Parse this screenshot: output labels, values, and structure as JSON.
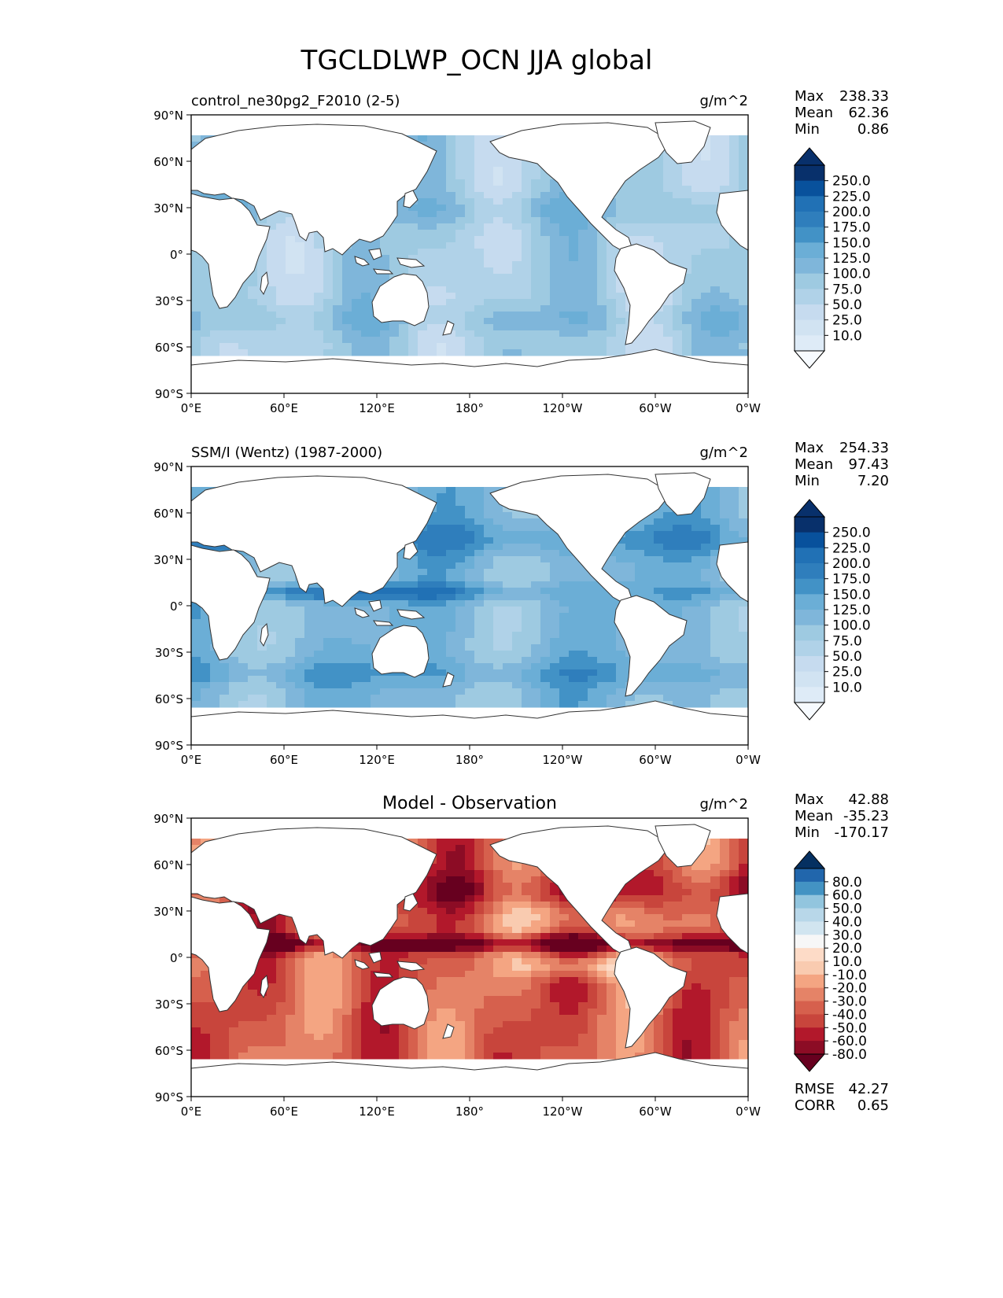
{
  "title": "TGCLDLWP_OCN JJA global",
  "colors": {
    "seq": [
      "#f7fbff",
      "#deebf7",
      "#d1e3f2",
      "#c6dbef",
      "#b0d2e8",
      "#9ecae1",
      "#7fb6da",
      "#6baed6",
      "#4292c6",
      "#2f7ebc",
      "#2171b5",
      "#08519c",
      "#08306b"
    ],
    "div": [
      "#67001f",
      "#8c0c25",
      "#b2182b",
      "#c8453c",
      "#d6604d",
      "#e58367",
      "#f4a582",
      "#f9cbb0",
      "#fddbc7",
      "#f7f7f7",
      "#d1e5f0",
      "#b8d7e9",
      "#92c5de",
      "#4393c3",
      "#2166ac",
      "#053061"
    ],
    "land": "#ffffff",
    "coast": "#333333"
  },
  "lat_ticks": [
    "90°N",
    "60°N",
    "30°N",
    "0°",
    "30°S",
    "60°S",
    "90°S"
  ],
  "lon_ticks": [
    "0°E",
    "60°E",
    "120°E",
    "180°",
    "120°W",
    "60°W",
    "0°W"
  ],
  "panels": [
    {
      "id": "model",
      "left_title": "control_ne30pg2_F2010 (2-5)",
      "center_title": "",
      "units": "g/m^2",
      "stats": [
        {
          "label": "Max",
          "value": "238.33"
        },
        {
          "label": "Mean",
          "value": "62.36"
        },
        {
          "label": "Min",
          "value": "0.86"
        }
      ],
      "colorbar": {
        "type": "sequential",
        "labels": [
          "250.0",
          "225.0",
          "200.0",
          "175.0",
          "150.0",
          "125.0",
          "100.0",
          "75.0",
          "50.0",
          "25.0",
          "10.0"
        ]
      },
      "extra_stats": []
    },
    {
      "id": "obs",
      "left_title": "SSM/I (Wentz) (1987-2000)",
      "center_title": "",
      "units": "g/m^2",
      "stats": [
        {
          "label": "Max",
          "value": "254.33"
        },
        {
          "label": "Mean",
          "value": "97.43"
        },
        {
          "label": "Min",
          "value": "7.20"
        }
      ],
      "colorbar": {
        "type": "sequential",
        "labels": [
          "250.0",
          "225.0",
          "200.0",
          "175.0",
          "150.0",
          "125.0",
          "100.0",
          "75.0",
          "50.0",
          "25.0",
          "10.0"
        ]
      },
      "extra_stats": []
    },
    {
      "id": "diff",
      "left_title": "",
      "center_title": "Model - Observation",
      "units": "g/m^2",
      "stats": [
        {
          "label": "Max",
          "value": "42.88"
        },
        {
          "label": "Mean",
          "value": "-35.23"
        },
        {
          "label": "Min",
          "value": "-170.17"
        }
      ],
      "colorbar": {
        "type": "diverging",
        "labels": [
          "80.0",
          "60.0",
          "50.0",
          "40.0",
          "30.0",
          "20.0",
          "10.0",
          "-10.0",
          "-20.0",
          "-30.0",
          "-40.0",
          "-50.0",
          "-60.0",
          "-80.0"
        ]
      },
      "extra_stats": [
        {
          "label": "RMSE",
          "value": "42.27"
        },
        {
          "label": "CORR",
          "value": "0.65"
        }
      ]
    }
  ],
  "chart_data": {
    "type": "heatmap",
    "title": "TGCLDLWP_OCN JJA global",
    "projection": "PlateCarree, central longitude 180",
    "xlim": [
      0,
      360
    ],
    "ylim": [
      -90,
      90
    ],
    "units": "g/m^2",
    "fields": [
      {
        "name": "control_ne30pg2_F2010 (2-5)",
        "max": 238.33,
        "mean": 62.36,
        "min": 0.86,
        "levels": [
          10,
          25,
          50,
          75,
          100,
          125,
          150,
          175,
          200,
          225,
          250
        ]
      },
      {
        "name": "SSM/I (Wentz) (1987-2000)",
        "max": 254.33,
        "mean": 97.43,
        "min": 7.2,
        "levels": [
          10,
          25,
          50,
          75,
          100,
          125,
          150,
          175,
          200,
          225,
          250
        ]
      },
      {
        "name": "Model - Observation",
        "max": 42.88,
        "mean": -35.23,
        "min": -170.17,
        "rmse": 42.27,
        "corr": 0.65,
        "levels": [
          -80,
          -60,
          -50,
          -40,
          -30,
          -20,
          -10,
          10,
          20,
          30,
          40,
          50,
          60,
          80
        ]
      }
    ]
  }
}
